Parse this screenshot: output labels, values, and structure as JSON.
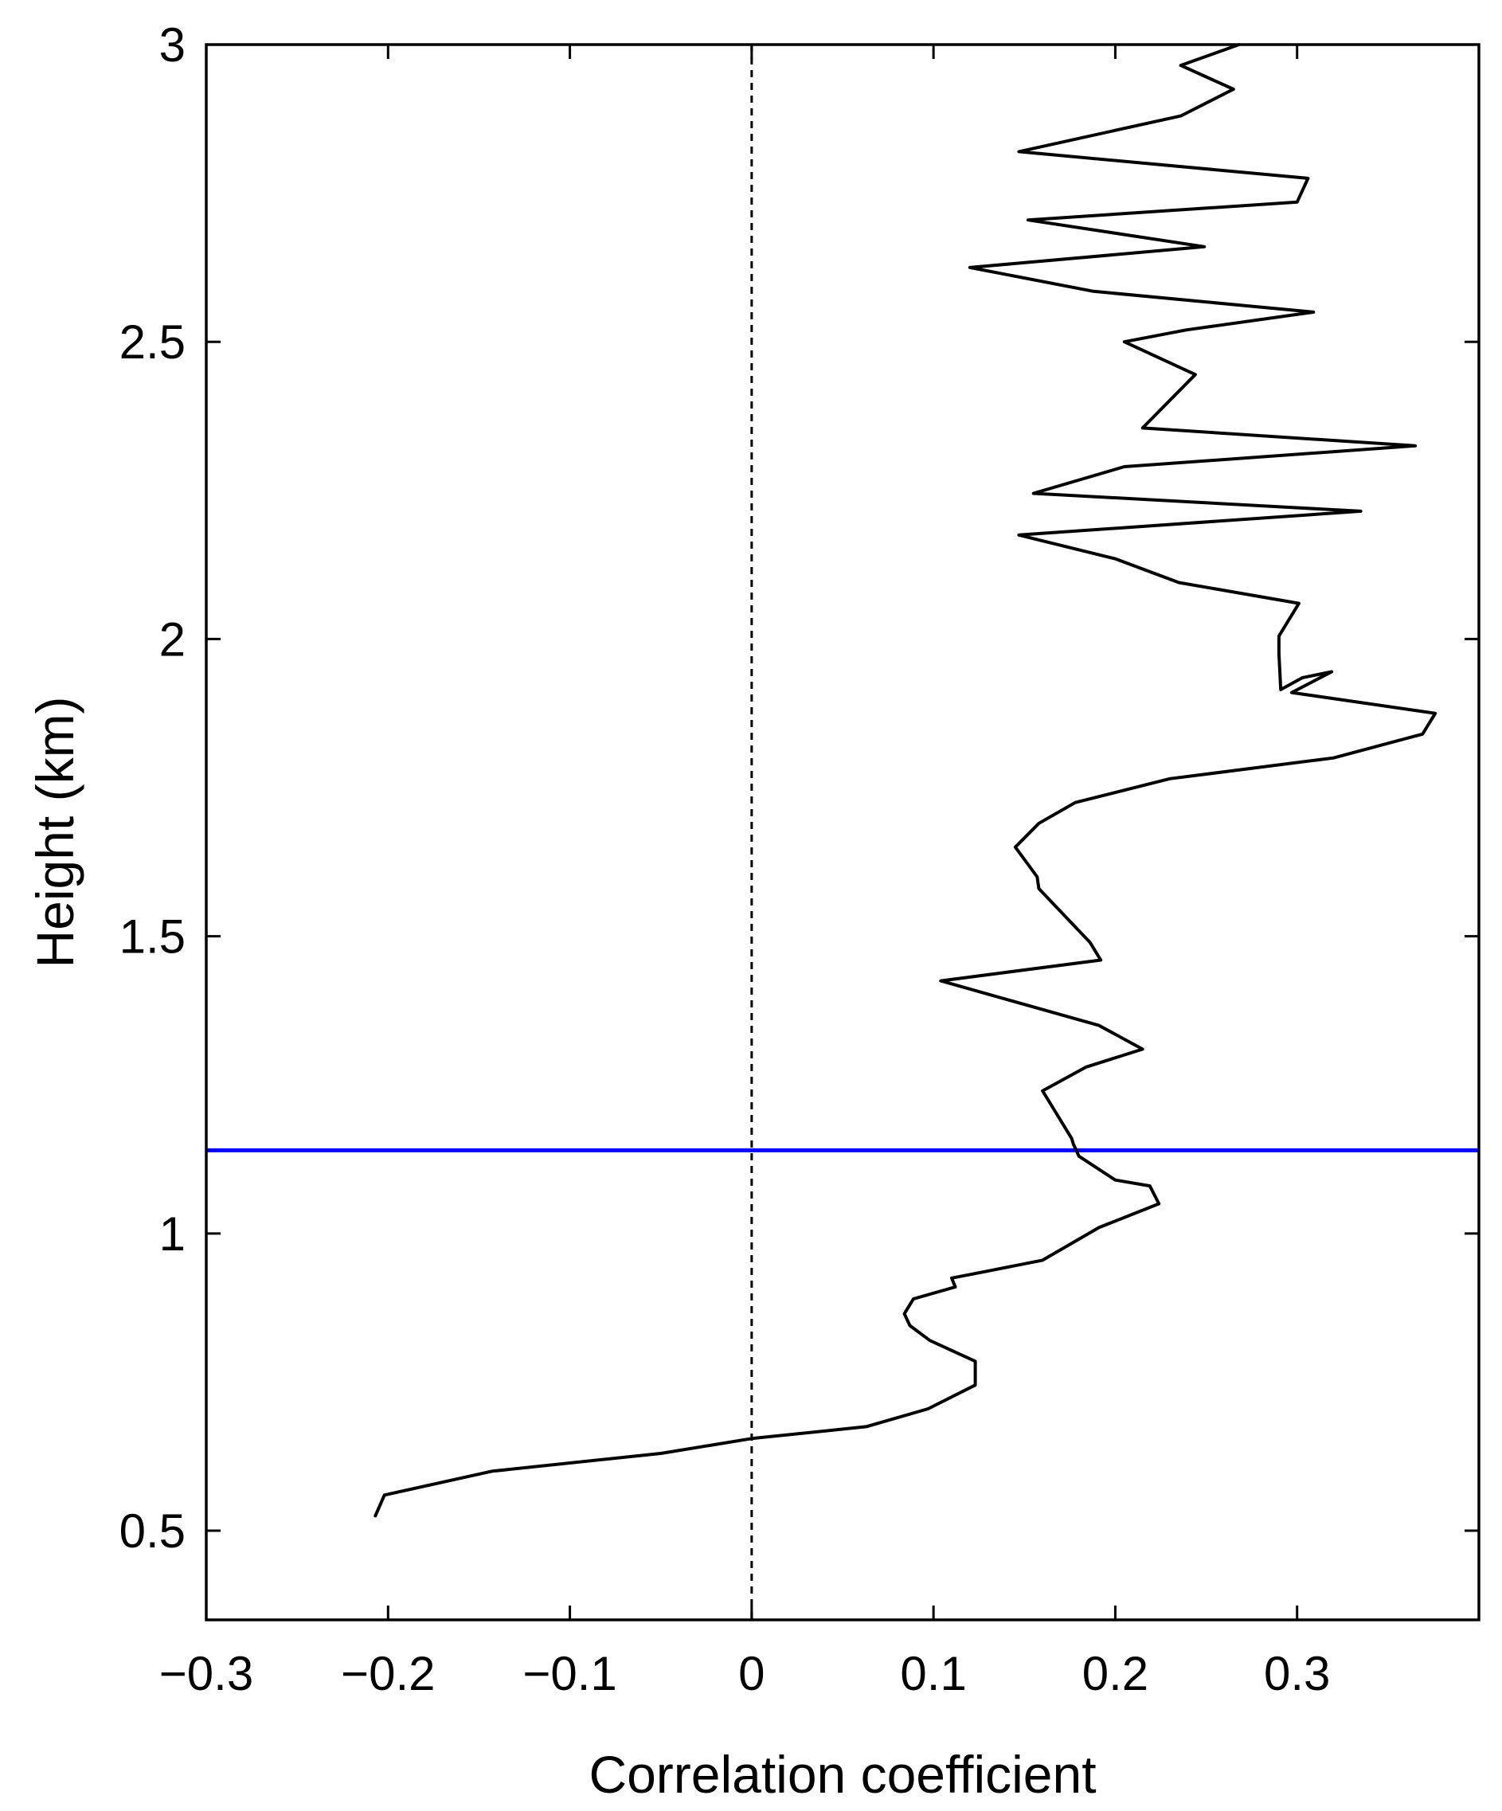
{
  "chart_data": {
    "type": "line",
    "title": "",
    "xlabel": "Correlation coefficient",
    "ylabel": "Height (km)",
    "xlim": [
      -0.3,
      0.4
    ],
    "ylim": [
      0.35,
      3.0
    ],
    "x_ticks": [
      -0.3,
      -0.2,
      -0.1,
      0,
      0.1,
      0.2,
      0.3
    ],
    "x_tick_labels": [
      "−0.3",
      "−0.2",
      "−0.1",
      "0",
      "0.1",
      "0.2",
      "0.3"
    ],
    "y_ticks": [
      0.5,
      1.0,
      1.5,
      2.0,
      2.5,
      3.0
    ],
    "y_tick_labels": [
      "0.5",
      "1",
      "1.5",
      "2",
      "2.5",
      "3"
    ],
    "grid": false,
    "series": [
      {
        "color": "#000000",
        "points": [
          [
            -0.207,
            0.525
          ],
          [
            -0.202,
            0.56
          ],
          [
            -0.143,
            0.6
          ],
          [
            -0.05,
            0.63
          ],
          [
            0.0,
            0.655
          ],
          [
            0.063,
            0.675
          ],
          [
            0.097,
            0.705
          ],
          [
            0.123,
            0.745
          ],
          [
            0.123,
            0.785
          ],
          [
            0.098,
            0.82
          ],
          [
            0.087,
            0.845
          ],
          [
            0.084,
            0.865
          ],
          [
            0.089,
            0.89
          ],
          [
            0.112,
            0.91
          ],
          [
            0.11,
            0.925
          ],
          [
            0.127,
            0.935
          ],
          [
            0.16,
            0.955
          ],
          [
            0.191,
            1.01
          ],
          [
            0.224,
            1.05
          ],
          [
            0.219,
            1.08
          ],
          [
            0.2,
            1.09
          ],
          [
            0.18,
            1.13
          ],
          [
            0.177,
            1.15
          ],
          [
            0.176,
            1.16
          ],
          [
            0.16,
            1.24
          ],
          [
            0.184,
            1.28
          ],
          [
            0.215,
            1.31
          ],
          [
            0.191,
            1.35
          ],
          [
            0.104,
            1.425
          ],
          [
            0.192,
            1.46
          ],
          [
            0.186,
            1.49
          ],
          [
            0.158,
            1.58
          ],
          [
            0.157,
            1.6
          ],
          [
            0.145,
            1.65
          ],
          [
            0.158,
            1.69
          ],
          [
            0.178,
            1.725
          ],
          [
            0.23,
            1.765
          ],
          [
            0.32,
            1.8
          ],
          [
            0.369,
            1.84
          ],
          [
            0.376,
            1.875
          ],
          [
            0.297,
            1.91
          ],
          [
            0.319,
            1.945
          ],
          [
            0.303,
            1.935
          ],
          [
            0.291,
            1.915
          ],
          [
            0.29,
            1.975
          ],
          [
            0.29,
            2.005
          ],
          [
            0.301,
            2.06
          ],
          [
            0.235,
            2.095
          ],
          [
            0.2,
            2.135
          ],
          [
            0.147,
            2.175
          ],
          [
            0.335,
            2.215
          ],
          [
            0.155,
            2.245
          ],
          [
            0.205,
            2.29
          ],
          [
            0.365,
            2.325
          ],
          [
            0.215,
            2.355
          ],
          [
            0.244,
            2.445
          ],
          [
            0.205,
            2.5
          ],
          [
            0.239,
            2.52
          ],
          [
            0.309,
            2.55
          ],
          [
            0.188,
            2.585
          ],
          [
            0.12,
            2.625
          ],
          [
            0.249,
            2.66
          ],
          [
            0.152,
            2.705
          ],
          [
            0.3,
            2.735
          ],
          [
            0.306,
            2.775
          ],
          [
            0.147,
            2.82
          ],
          [
            0.236,
            2.88
          ],
          [
            0.265,
            2.925
          ],
          [
            0.236,
            2.965
          ],
          [
            0.268,
            3.0
          ]
        ]
      }
    ],
    "reference_lines": [
      {
        "orientation": "vertical",
        "value": 0,
        "style": "dashed",
        "color": "#000000"
      },
      {
        "orientation": "horizontal",
        "value": 1.14,
        "style": "solid",
        "color": "#0000ff"
      }
    ]
  }
}
